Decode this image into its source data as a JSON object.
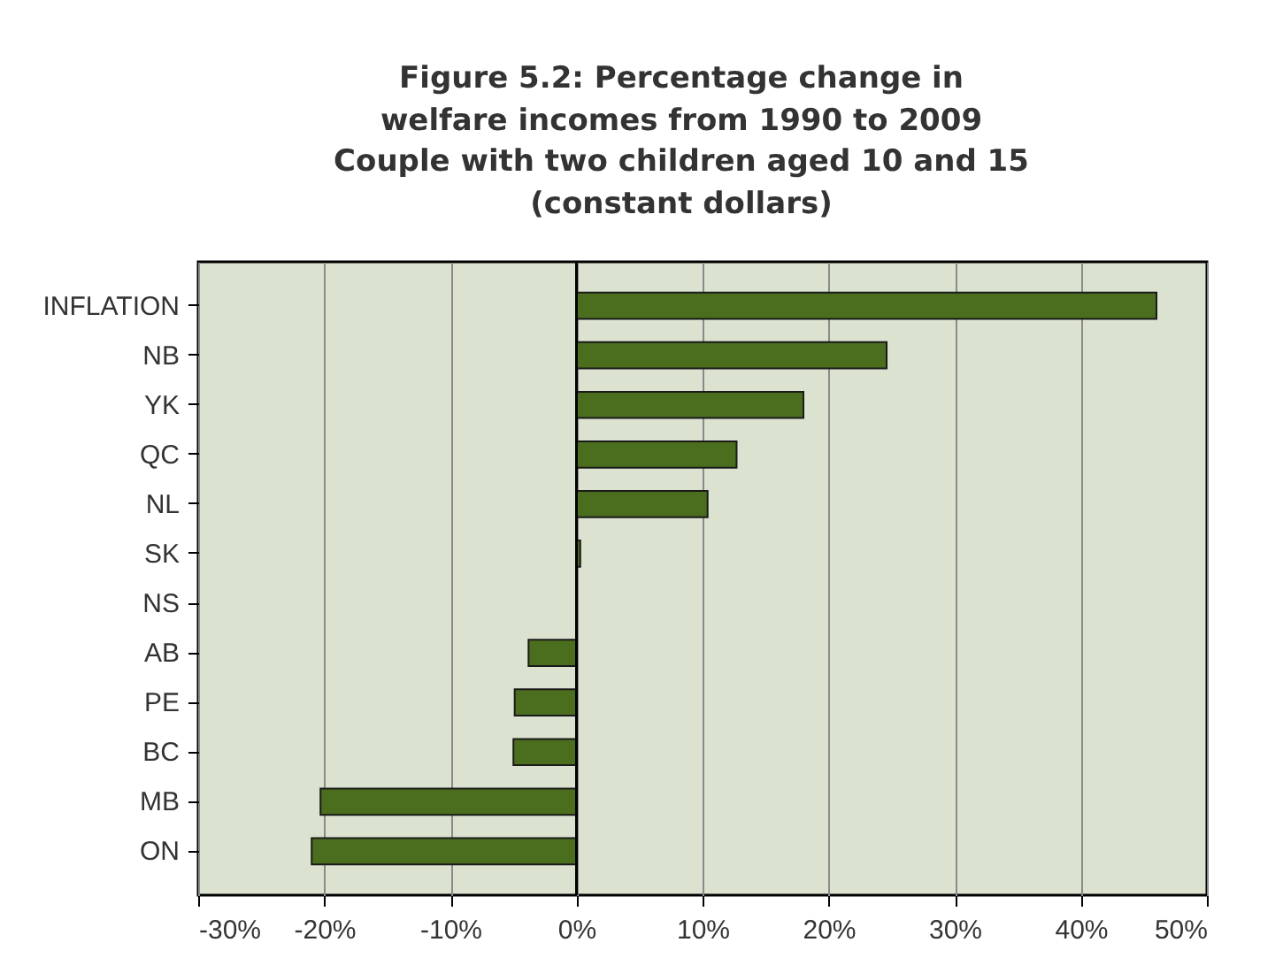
{
  "chart_data": {
    "type": "bar",
    "orientation": "horizontal",
    "title": "Figure 5.2: Percentage change in\nwelfare incomes from 1990 to 2009",
    "subtitle": "Couple with two children aged 10 and 15\n(constant dollars)",
    "categories": [
      "INFLATION",
      "NB",
      "YK",
      "QC",
      "NL",
      "SK",
      "NS",
      "AB",
      "PE",
      "BC",
      "MB",
      "ON"
    ],
    "values": [
      46,
      24.6,
      18.0,
      12.7,
      10.4,
      0.3,
      0,
      -3.8,
      -4.9,
      -5.0,
      -20.3,
      -21.0
    ],
    "color": "#4a6e1e",
    "xlim": [
      -30,
      50
    ],
    "xticks": [
      {
        "value": -30,
        "label": "-30%"
      },
      {
        "value": -20,
        "label": "-20%"
      },
      {
        "value": -10,
        "label": "-10%"
      },
      {
        "value": 0,
        "label": "0%"
      },
      {
        "value": 10,
        "label": "10%"
      },
      {
        "value": 20,
        "label": "20%"
      },
      {
        "value": 30,
        "label": "30%"
      },
      {
        "value": 40,
        "label": "40%"
      },
      {
        "value": 50,
        "label": "50%"
      }
    ],
    "grid": "x",
    "ref_lines": [
      {
        "axis": "x",
        "value": 0,
        "color": "#000000"
      }
    ]
  }
}
